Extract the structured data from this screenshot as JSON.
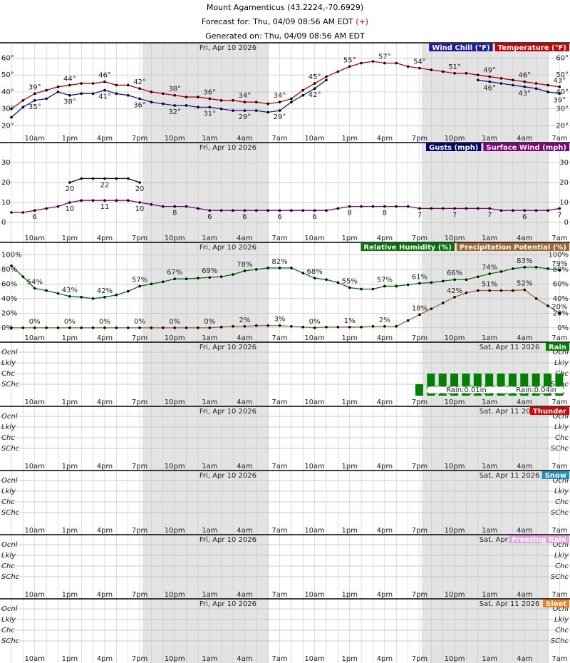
{
  "header": {
    "title": "Mount Agamenticus (43.2224,-70.6929)",
    "forecast": "Forecast for: Thu, 04/09 08:56 AM EDT",
    "forecast_mark": "(+)",
    "generated": "Generated on: Thu, 04/09 08:56 AM EDT"
  },
  "x_axis": {
    "categories": [
      null,
      null,
      "10am",
      null,
      null,
      "1pm",
      null,
      null,
      "4pm",
      null,
      null,
      "7pm",
      null,
      null,
      "10pm",
      null,
      null,
      "1am",
      null,
      null,
      "4am",
      null,
      null,
      "7am",
      null,
      null,
      "10am",
      null,
      null,
      "1pm",
      null,
      null,
      "4pm",
      null,
      null,
      "7pm",
      null,
      null,
      "10pm",
      null,
      null,
      "1am",
      null,
      null,
      "4am",
      null,
      null,
      "7am"
    ]
  },
  "chart_data": [
    {
      "type": "line",
      "date_labels": [
        "Fri, Apr 10 2026"
      ],
      "ylim": [
        16,
        69
      ],
      "yticks": [
        {
          "value": 20,
          "label": "20°"
        },
        {
          "value": 30,
          "label": "30°"
        },
        {
          "value": 40,
          "label": "40°"
        },
        {
          "value": 50,
          "label": "50°"
        },
        {
          "value": 60,
          "label": "60°"
        }
      ],
      "series": [
        {
          "name": "Wind Chill (°F)",
          "color": "#1c1c9c",
          "values": [
            25,
            31,
            35,
            36,
            40,
            38,
            39,
            39,
            41,
            39,
            38,
            36,
            34,
            33,
            32,
            32,
            31,
            31,
            30,
            29,
            29,
            29,
            28,
            29,
            34,
            38,
            42,
            47,
            null,
            null,
            null,
            null,
            null,
            null,
            null,
            null,
            null,
            null,
            null,
            null,
            47,
            46,
            45,
            44,
            43,
            42,
            40,
            39
          ],
          "value_labels": [
            null,
            null,
            "35°",
            null,
            null,
            "38°",
            null,
            null,
            "41°",
            null,
            null,
            "36°",
            null,
            null,
            "32°",
            null,
            null,
            "31°",
            null,
            null,
            "29°",
            null,
            null,
            "29°",
            null,
            null,
            "42°",
            null,
            null,
            null,
            null,
            null,
            null,
            null,
            null,
            null,
            null,
            null,
            null,
            null,
            null,
            "46°",
            null,
            null,
            "43°",
            null,
            null,
            "39°"
          ]
        },
        {
          "name": "Temperature (°F)",
          "color": "#cc0000",
          "values": [
            30,
            35,
            39,
            41,
            43,
            44,
            45,
            45,
            46,
            44,
            44,
            42,
            40,
            39,
            38,
            37,
            37,
            36,
            35,
            35,
            34,
            34,
            33,
            34,
            36,
            41,
            45,
            49,
            52,
            55,
            57,
            58,
            57,
            57,
            55,
            54,
            53,
            52,
            51,
            51,
            50,
            49,
            48,
            47,
            46,
            45,
            44,
            43
          ],
          "value_labels": [
            null,
            null,
            "39°",
            null,
            null,
            "44°",
            null,
            null,
            "46°",
            null,
            null,
            "42°",
            null,
            null,
            "38°",
            null,
            null,
            "36°",
            null,
            null,
            "34°",
            null,
            null,
            "34°",
            null,
            null,
            "45°",
            null,
            null,
            "55°",
            null,
            null,
            "57°",
            null,
            null,
            "54°",
            null,
            null,
            "51°",
            null,
            null,
            "49°",
            null,
            null,
            "46°",
            null,
            null,
            "43°"
          ]
        }
      ]
    },
    {
      "type": "line",
      "date_labels": [
        "Fri, Apr 10 2026"
      ],
      "ylim": [
        -5,
        40
      ],
      "yticks": [
        0,
        10,
        20,
        30
      ],
      "series": [
        {
          "name": "Gusts (mph)",
          "color": "#000070",
          "values": [
            null,
            null,
            null,
            null,
            null,
            20,
            22,
            22,
            22,
            22,
            22,
            20,
            null,
            null,
            null,
            null,
            null,
            null,
            null,
            null,
            null,
            null,
            null,
            null,
            null,
            null,
            null,
            null,
            null,
            null,
            null,
            null,
            null,
            null,
            null,
            null,
            null,
            null,
            null,
            null,
            null,
            null,
            null,
            null,
            null,
            null,
            null,
            null
          ]
        },
        {
          "name": "Surface Wind (mph)",
          "color": "#800080",
          "values": [
            5,
            5,
            6,
            7,
            8,
            10,
            11,
            11,
            11,
            11,
            11,
            10,
            9,
            8,
            8,
            8,
            7,
            6,
            6,
            6,
            6,
            6,
            6,
            6,
            6,
            6,
            6,
            6,
            7,
            8,
            8,
            8,
            8,
            8,
            8,
            7,
            7,
            7,
            7,
            7,
            7,
            7,
            6,
            6,
            6,
            6,
            6,
            7
          ]
        }
      ]
    },
    {
      "type": "line",
      "date_labels": [
        "Fri, Apr 10 2026"
      ],
      "ylim": [
        -8,
        117
      ],
      "yticks": [
        {
          "value": 0,
          "label": "0%"
        },
        {
          "value": 20,
          "label": "20%"
        },
        {
          "value": 40,
          "label": "40%"
        },
        {
          "value": 60,
          "label": "60%"
        },
        {
          "value": 80,
          "label": "80%"
        },
        {
          "value": 100,
          "label": "100%"
        }
      ],
      "series": [
        {
          "name": "Relative Humidity (%)",
          "color": "#007700",
          "values": [
            85,
            70,
            54,
            51,
            47,
            43,
            42,
            40,
            42,
            45,
            50,
            57,
            60,
            63,
            67,
            67,
            68,
            69,
            70,
            73,
            78,
            80,
            82,
            82,
            82,
            75,
            68,
            66,
            62,
            55,
            53,
            53,
            57,
            57,
            59,
            61,
            62,
            64,
            66,
            66,
            70,
            74,
            77,
            81,
            83,
            83,
            81,
            79
          ],
          "value_labels": [
            null,
            null,
            "54%",
            null,
            null,
            "43%",
            null,
            null,
            "42%",
            null,
            null,
            "57%",
            null,
            null,
            "67%",
            null,
            null,
            "69%",
            null,
            null,
            "78%",
            null,
            null,
            "82%",
            null,
            null,
            "68%",
            null,
            null,
            "55%",
            null,
            null,
            "57%",
            null,
            null,
            "61%",
            null,
            null,
            "66%",
            null,
            null,
            "74%",
            null,
            null,
            "83%",
            null,
            null,
            "79%"
          ]
        },
        {
          "name": "Precipitation Potential (%)",
          "color": "#a0662e",
          "values": [
            0,
            0,
            0,
            0,
            0,
            0,
            0,
            0,
            0,
            0,
            0,
            0,
            0,
            0,
            0,
            0,
            0,
            0,
            1,
            2,
            2,
            3,
            3,
            3,
            2,
            1,
            0,
            1,
            1,
            1,
            1,
            2,
            2,
            2,
            10,
            18,
            26,
            34,
            42,
            48,
            51,
            51,
            51,
            51,
            52,
            40,
            30,
            20
          ],
          "value_labels": [
            null,
            null,
            "0%",
            null,
            null,
            "0%",
            null,
            null,
            "0%",
            null,
            null,
            "0%",
            null,
            null,
            "0%",
            null,
            null,
            "0%",
            null,
            null,
            "2%",
            null,
            null,
            "3%",
            null,
            null,
            "0%",
            null,
            null,
            "1%",
            null,
            null,
            "2%",
            null,
            null,
            "18%",
            null,
            null,
            "42%",
            null,
            null,
            "51%",
            null,
            null,
            "52%",
            null,
            null,
            "20%"
          ]
        }
      ]
    },
    {
      "type": "weather",
      "title": "Rain",
      "color": "#008000",
      "date_labels": [
        "Fri, Apr 10 2026",
        "Sat, Apr 11 2026"
      ],
      "levels": [
        "Ocnl",
        "Lkly",
        "Chc",
        "SChc"
      ],
      "values": [
        null,
        null,
        null,
        null,
        null,
        null,
        null,
        null,
        null,
        null,
        null,
        null,
        null,
        null,
        null,
        null,
        null,
        null,
        null,
        null,
        null,
        null,
        null,
        null,
        null,
        null,
        null,
        null,
        null,
        null,
        null,
        null,
        null,
        null,
        null,
        "SChc",
        "Chc",
        "Chc",
        "Chc",
        "Chc",
        "Chc",
        "Chc",
        "Chc",
        "Chc",
        "Chc",
        "Chc",
        "Chc",
        "Chc"
      ],
      "qpf_labels": [
        null,
        null,
        null,
        null,
        null,
        null,
        null,
        null,
        null,
        null,
        null,
        null,
        null,
        null,
        null,
        null,
        null,
        null,
        null,
        null,
        null,
        null,
        null,
        null,
        null,
        null,
        null,
        null,
        null,
        null,
        null,
        null,
        null,
        null,
        null,
        null,
        null,
        null,
        null,
        "Rain:0.01in",
        null,
        null,
        null,
        null,
        null,
        "Rain:0.04in",
        null,
        null
      ]
    },
    {
      "type": "weather",
      "title": "Thunder",
      "color": "#dd0000",
      "date_labels": [
        "Fri, Apr 10 2026",
        "Sat, Apr 11 2026"
      ],
      "levels": [
        "Ocnl",
        "Lkly",
        "Chc",
        "SChc"
      ]
    },
    {
      "type": "weather",
      "title": "Snow",
      "color": "#1e90c0",
      "date_labels": [
        "Fri, Apr 10 2026",
        "Sat, Apr 11 2026"
      ],
      "levels": [
        "Ocnl",
        "Lkly",
        "Chc",
        "SChc"
      ]
    },
    {
      "type": "weather",
      "title": "Freezing Rain",
      "color": "#e0a8e0",
      "date_labels": [
        "Fri, Apr 10 2026",
        "Sat, Apr 11 2026"
      ],
      "levels": [
        "Ocnl",
        "Lkly",
        "Chc",
        "SChc"
      ]
    },
    {
      "type": "weather",
      "title": "Sleet",
      "color": "#f08020",
      "date_labels": [
        "Fri, Apr 10 2026",
        "Sat, Apr 11 2026"
      ],
      "levels": [
        "Ocnl",
        "Lkly",
        "Chc",
        "SChc"
      ]
    }
  ]
}
